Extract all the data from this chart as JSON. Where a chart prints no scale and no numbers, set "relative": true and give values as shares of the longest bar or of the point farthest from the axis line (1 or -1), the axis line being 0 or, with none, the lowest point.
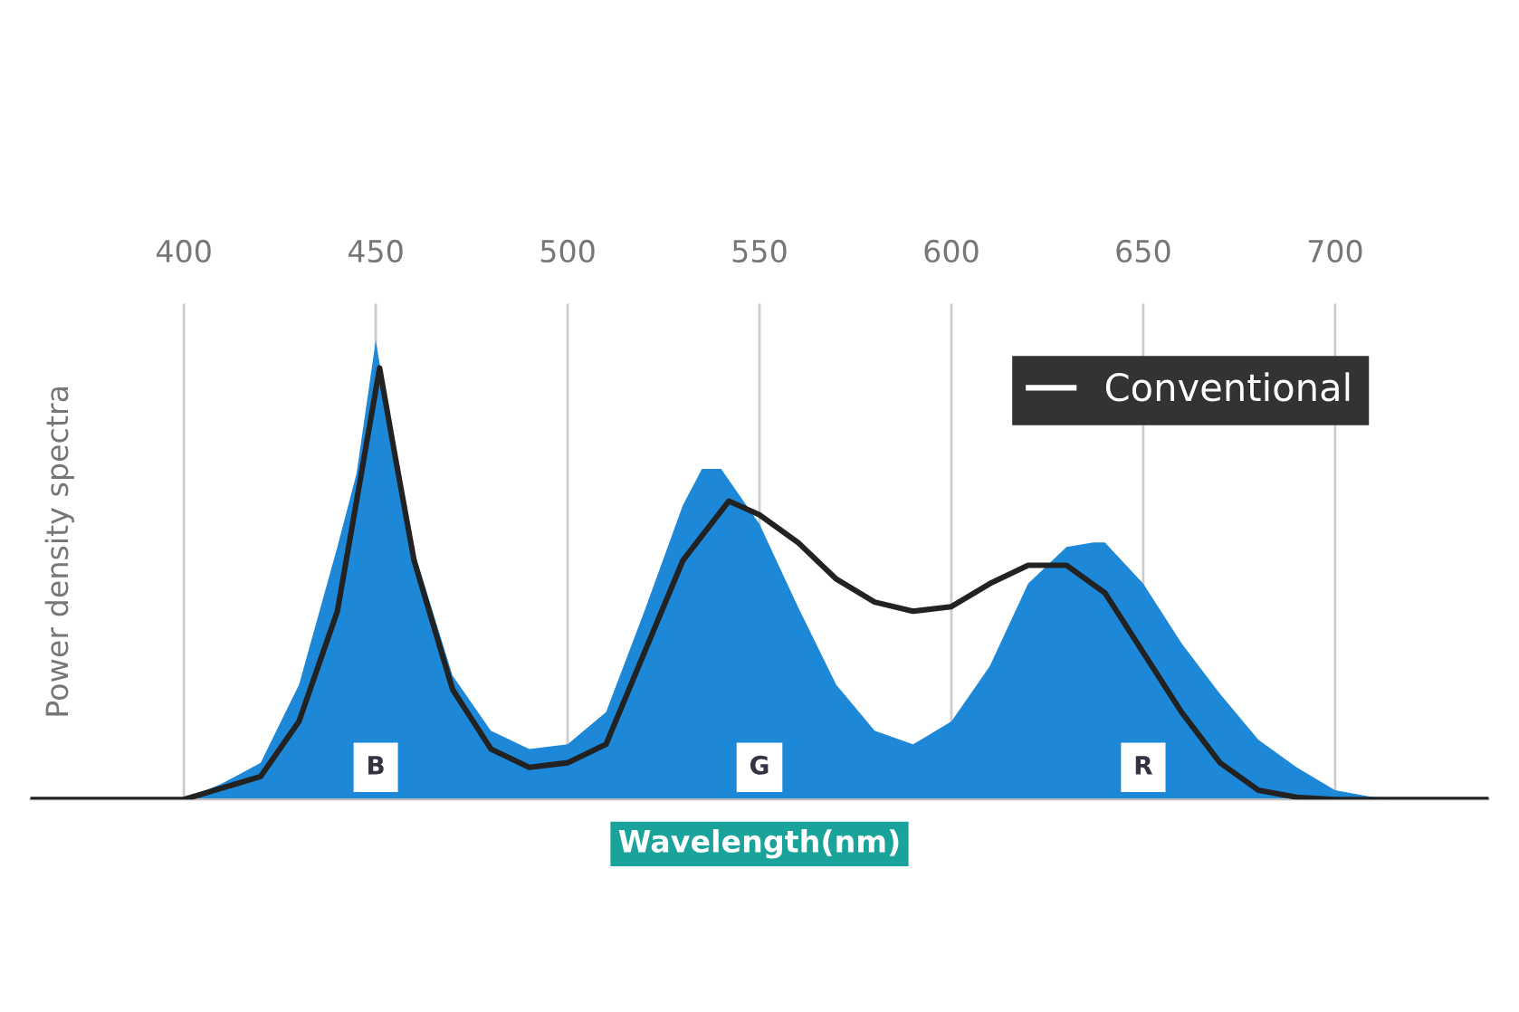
{
  "chart_data": {
    "type": "area",
    "relative": true,
    "xlabel": "Wavelength(nm)",
    "ylabel": "Power density spectra",
    "xlim": [
      360,
      740
    ],
    "xticks": [
      400,
      450,
      500,
      550,
      600,
      650,
      700
    ],
    "grid": "x",
    "legend": "top right",
    "annotations": [
      {
        "text": "B",
        "x": 450,
        "y": 0.07
      },
      {
        "text": "G",
        "x": 550,
        "y": 0.07
      },
      {
        "text": "R",
        "x": 650,
        "y": 0.07
      }
    ],
    "series": [
      {
        "color": "#1e88d8",
        "x": [
          360,
          380,
          400,
          410,
          420,
          430,
          440,
          445,
          450,
          455,
          460,
          470,
          480,
          490,
          500,
          510,
          520,
          530,
          535,
          540,
          550,
          560,
          570,
          580,
          590,
          600,
          610,
          620,
          630,
          637,
          640,
          650,
          660,
          670,
          680,
          690,
          700,
          710,
          740
        ],
        "values": [
          0,
          0,
          0,
          0.035,
          0.08,
          0.25,
          0.55,
          0.71,
          1.0,
          0.75,
          0.54,
          0.27,
          0.15,
          0.11,
          0.12,
          0.19,
          0.41,
          0.64,
          0.72,
          0.72,
          0.6,
          0.42,
          0.25,
          0.15,
          0.12,
          0.17,
          0.29,
          0.47,
          0.55,
          0.56,
          0.56,
          0.47,
          0.34,
          0.23,
          0.13,
          0.07,
          0.02,
          0.005,
          0
        ]
      },
      {
        "type": "line",
        "name": "Conventional",
        "color": "#222222",
        "x": [
          360,
          380,
          400,
          420,
          430,
          440,
          445,
          451,
          455,
          460,
          470,
          480,
          490,
          500,
          510,
          520,
          530,
          542,
          550,
          560,
          570,
          580,
          590,
          600,
          610,
          620,
          630,
          640,
          650,
          660,
          670,
          680,
          690,
          700,
          740
        ],
        "values": [
          0,
          0,
          0,
          0.05,
          0.17,
          0.41,
          0.65,
          0.94,
          0.75,
          0.52,
          0.24,
          0.11,
          0.07,
          0.08,
          0.12,
          0.32,
          0.52,
          0.65,
          0.62,
          0.56,
          0.48,
          0.43,
          0.41,
          0.42,
          0.47,
          0.51,
          0.51,
          0.45,
          0.32,
          0.19,
          0.08,
          0.02,
          0.005,
          0,
          0
        ]
      }
    ]
  }
}
